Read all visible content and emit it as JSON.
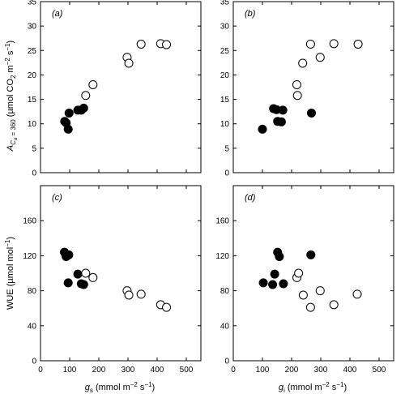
{
  "figure": {
    "ylabel_top": {
      "main": "A",
      "sub1": "C",
      "sub2": "a",
      "sub3": " = 360",
      "units": " (µmol CO",
      "units_sub": "2",
      "units_rest": " m",
      "units_sup": "−2",
      "units_end": " s",
      "units_sup2": "−1",
      "units_close": ")"
    },
    "ylabel_bottom": {
      "main": "WUE (µmol mol",
      "sup": "−1",
      "close": ")"
    },
    "xlabel_left": {
      "main": "g",
      "sub": "s",
      "rest": " (mmol m",
      "sup": "−2",
      "rest2": " s",
      "sup2": "−1",
      "close": ")"
    },
    "xlabel_right": {
      "main": "g",
      "sub": "i",
      "rest": " (mmol m",
      "sup": "−2",
      "rest2": " s",
      "sup2": "−1",
      "close": ")"
    }
  },
  "chart_data": [
    {
      "type": "scatter",
      "panel": "(a)",
      "xlim": [
        0,
        550
      ],
      "ylim": [
        0,
        35
      ],
      "xticks": [
        0,
        100,
        200,
        300,
        400,
        500
      ],
      "yticks": [
        0,
        5,
        10,
        15,
        20,
        25,
        30,
        35
      ],
      "series": [
        {
          "marker": "filled",
          "points": [
            [
              83,
              10.5
            ],
            [
              88,
              10.2
            ],
            [
              95,
              8.9
            ],
            [
              98,
              12.2
            ],
            [
              128,
              12.8
            ],
            [
              140,
              12.8
            ],
            [
              148,
              13.2
            ]
          ]
        },
        {
          "marker": "open",
          "points": [
            [
              155,
              15.8
            ],
            [
              180,
              18
            ],
            [
              297,
              23.6
            ],
            [
              303,
              22.4
            ],
            [
              345,
              26.3
            ],
            [
              412,
              26.4
            ],
            [
              432,
              26.2
            ]
          ]
        }
      ]
    },
    {
      "type": "scatter",
      "panel": "(b)",
      "xlim": [
        0,
        550
      ],
      "ylim": [
        0,
        35
      ],
      "xticks": [
        0,
        100,
        200,
        300,
        400,
        500
      ],
      "yticks": [
        0,
        5,
        10,
        15,
        20,
        25,
        30,
        35
      ],
      "series": [
        {
          "marker": "filled",
          "points": [
            [
              100,
              8.9
            ],
            [
              138,
              13.1
            ],
            [
              148,
              12.9
            ],
            [
              152,
              10.5
            ],
            [
              165,
              10.4
            ],
            [
              170,
              12.8
            ],
            [
              268,
              12.2
            ]
          ]
        },
        {
          "marker": "open",
          "points": [
            [
              218,
              18
            ],
            [
              220,
              15.8
            ],
            [
              238,
              22.4
            ],
            [
              265,
              26.3
            ],
            [
              298,
              23.6
            ],
            [
              345,
              26.4
            ],
            [
              428,
              26.3
            ]
          ]
        }
      ]
    },
    {
      "type": "scatter",
      "panel": "(c)",
      "xlim": [
        0,
        550
      ],
      "ylim": [
        0,
        200
      ],
      "xticks": [
        0,
        100,
        200,
        300,
        400,
        500
      ],
      "yticks": [
        0,
        40,
        80,
        120,
        160
      ],
      "series": [
        {
          "marker": "filled",
          "points": [
            [
              82,
              124
            ],
            [
              88,
              119
            ],
            [
              97,
              121
            ],
            [
              95,
              89
            ],
            [
              128,
              99
            ],
            [
              140,
              88
            ],
            [
              148,
              87
            ]
          ]
        },
        {
          "marker": "open",
          "points": [
            [
              155,
              100
            ],
            [
              180,
              95
            ],
            [
              297,
              80
            ],
            [
              303,
              75
            ],
            [
              345,
              76
            ],
            [
              412,
              64
            ],
            [
              432,
              61
            ]
          ]
        }
      ]
    },
    {
      "type": "scatter",
      "panel": "(d)",
      "xlim": [
        0,
        550
      ],
      "ylim": [
        0,
        200
      ],
      "xticks": [
        0,
        100,
        200,
        300,
        400,
        500
      ],
      "yticks": [
        0,
        40,
        80,
        120,
        160
      ],
      "series": [
        {
          "marker": "filled",
          "points": [
            [
              103,
              89
            ],
            [
              135,
              87
            ],
            [
              142,
              99
            ],
            [
              152,
              124
            ],
            [
              158,
              119
            ],
            [
              172,
              88
            ],
            [
              266,
              121
            ]
          ]
        },
        {
          "marker": "open",
          "points": [
            [
              218,
              95
            ],
            [
              224,
              100
            ],
            [
              240,
              75
            ],
            [
              265,
              61
            ],
            [
              298,
              80
            ],
            [
              345,
              64
            ],
            [
              425,
              76
            ]
          ]
        }
      ]
    }
  ]
}
